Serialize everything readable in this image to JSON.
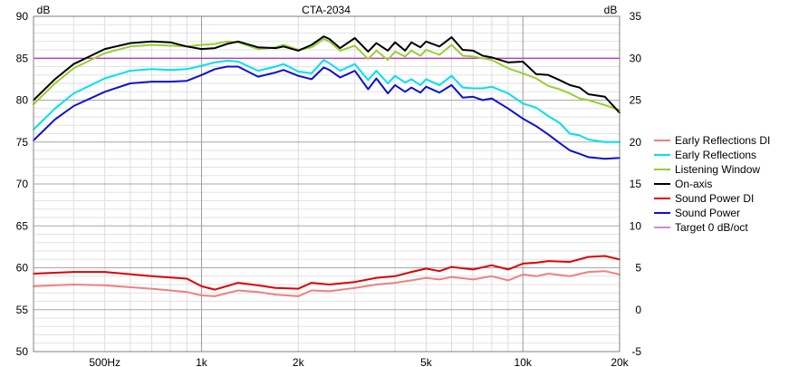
{
  "chart_data": {
    "type": "line",
    "title": "CTA-2034",
    "left_unit": "dB",
    "right_unit": "dB",
    "x_scale": "log",
    "xlim": [
      300,
      20000
    ],
    "ylim_left": [
      50,
      90
    ],
    "ylim_right": [
      -5,
      35
    ],
    "grid": true,
    "legend_position": "right",
    "x_ticks": [
      {
        "value": 500,
        "label": "500Hz"
      },
      {
        "value": 1000,
        "label": "1k"
      },
      {
        "value": 2000,
        "label": "2k"
      },
      {
        "value": 5000,
        "label": "5k"
      },
      {
        "value": 10000,
        "label": "10k"
      },
      {
        "value": 20000,
        "label": "20k"
      }
    ],
    "y_ticks_left": [
      {
        "value": 90,
        "label": "90"
      },
      {
        "value": 85,
        "label": "85"
      },
      {
        "value": 80,
        "label": "80"
      },
      {
        "value": 75,
        "label": "75"
      },
      {
        "value": 70,
        "label": "70"
      },
      {
        "value": 65,
        "label": "65"
      },
      {
        "value": 60,
        "label": "60"
      },
      {
        "value": 55,
        "label": "55"
      },
      {
        "value": 50,
        "label": "50"
      }
    ],
    "y_ticks_right": [
      {
        "value": 35,
        "label": "35"
      },
      {
        "value": 30,
        "label": "30"
      },
      {
        "value": 25,
        "label": "25"
      },
      {
        "value": 20,
        "label": "20"
      },
      {
        "value": 15,
        "label": "15"
      },
      {
        "value": 10,
        "label": "10"
      },
      {
        "value": 5,
        "label": "5"
      },
      {
        "value": 0,
        "label": "0"
      },
      {
        "value": -5,
        "label": "-5"
      }
    ],
    "series": [
      {
        "name": "Early Reflections DI",
        "color": "#f08080",
        "axis": "right",
        "points": [
          [
            300,
            2.8
          ],
          [
            400,
            3.0
          ],
          [
            500,
            2.9
          ],
          [
            700,
            2.5
          ],
          [
            900,
            2.1
          ],
          [
            1000,
            1.7
          ],
          [
            1100,
            1.6
          ],
          [
            1300,
            2.3
          ],
          [
            1500,
            2.1
          ],
          [
            1700,
            1.8
          ],
          [
            2000,
            1.6
          ],
          [
            2200,
            2.3
          ],
          [
            2500,
            2.2
          ],
          [
            3000,
            2.6
          ],
          [
            3500,
            3.0
          ],
          [
            4000,
            3.2
          ],
          [
            4500,
            3.5
          ],
          [
            5000,
            3.8
          ],
          [
            5500,
            3.6
          ],
          [
            6000,
            3.9
          ],
          [
            7000,
            3.6
          ],
          [
            8000,
            4.0
          ],
          [
            9000,
            3.5
          ],
          [
            10000,
            4.2
          ],
          [
            11000,
            4.0
          ],
          [
            12000,
            4.3
          ],
          [
            14000,
            4.0
          ],
          [
            16000,
            4.5
          ],
          [
            18000,
            4.6
          ],
          [
            20000,
            4.2
          ]
        ]
      },
      {
        "name": "Early Reflections",
        "color": "#00e0f0",
        "axis": "left",
        "points": [
          [
            300,
            76.5
          ],
          [
            350,
            79.0
          ],
          [
            400,
            80.8
          ],
          [
            500,
            82.6
          ],
          [
            600,
            83.5
          ],
          [
            700,
            83.7
          ],
          [
            800,
            83.6
          ],
          [
            900,
            83.7
          ],
          [
            1000,
            84.1
          ],
          [
            1100,
            84.5
          ],
          [
            1200,
            84.7
          ],
          [
            1300,
            84.6
          ],
          [
            1500,
            83.5
          ],
          [
            1700,
            84.0
          ],
          [
            1800,
            84.3
          ],
          [
            2000,
            83.4
          ],
          [
            2200,
            83.2
          ],
          [
            2400,
            84.8
          ],
          [
            2500,
            84.4
          ],
          [
            2700,
            83.5
          ],
          [
            3000,
            84.3
          ],
          [
            3300,
            82.4
          ],
          [
            3500,
            83.5
          ],
          [
            3800,
            82.0
          ],
          [
            4000,
            82.9
          ],
          [
            4300,
            82.1
          ],
          [
            4500,
            82.5
          ],
          [
            4800,
            81.8
          ],
          [
            5000,
            82.5
          ],
          [
            5500,
            81.8
          ],
          [
            6000,
            82.9
          ],
          [
            6500,
            81.5
          ],
          [
            7000,
            81.4
          ],
          [
            7500,
            81.4
          ],
          [
            8000,
            81.6
          ],
          [
            9000,
            80.8
          ],
          [
            10000,
            79.6
          ],
          [
            11000,
            79.1
          ],
          [
            12000,
            78.1
          ],
          [
            13000,
            77.3
          ],
          [
            14000,
            76.0
          ],
          [
            15000,
            75.8
          ],
          [
            16000,
            75.3
          ],
          [
            18000,
            75.0
          ],
          [
            20000,
            75.0
          ]
        ]
      },
      {
        "name": "Listening Window",
        "color": "#9acd32",
        "axis": "left",
        "points": [
          [
            300,
            79.5
          ],
          [
            350,
            82.0
          ],
          [
            400,
            83.8
          ],
          [
            500,
            85.6
          ],
          [
            600,
            86.4
          ],
          [
            700,
            86.6
          ],
          [
            800,
            86.5
          ],
          [
            900,
            86.4
          ],
          [
            1000,
            86.6
          ],
          [
            1100,
            86.7
          ],
          [
            1200,
            87.0
          ],
          [
            1300,
            86.9
          ],
          [
            1500,
            86.1
          ],
          [
            1700,
            86.3
          ],
          [
            1800,
            86.6
          ],
          [
            2000,
            86.0
          ],
          [
            2200,
            86.3
          ],
          [
            2400,
            87.3
          ],
          [
            2500,
            87.0
          ],
          [
            2700,
            85.9
          ],
          [
            3000,
            86.5
          ],
          [
            3300,
            84.9
          ],
          [
            3500,
            85.9
          ],
          [
            3800,
            84.8
          ],
          [
            4000,
            85.8
          ],
          [
            4300,
            85.2
          ],
          [
            4500,
            85.9
          ],
          [
            4800,
            85.3
          ],
          [
            5000,
            86.0
          ],
          [
            5500,
            85.4
          ],
          [
            6000,
            86.6
          ],
          [
            6500,
            85.3
          ],
          [
            7000,
            85.2
          ],
          [
            7500,
            85.0
          ],
          [
            8000,
            84.8
          ],
          [
            9000,
            83.8
          ],
          [
            10000,
            83.2
          ],
          [
            11000,
            82.6
          ],
          [
            12000,
            81.7
          ],
          [
            13000,
            81.3
          ],
          [
            14000,
            80.8
          ],
          [
            15000,
            80.2
          ],
          [
            16000,
            80.0
          ],
          [
            18000,
            79.4
          ],
          [
            20000,
            78.8
          ]
        ]
      },
      {
        "name": "On-axis",
        "color": "#000000",
        "axis": "left",
        "points": [
          [
            300,
            80.0
          ],
          [
            350,
            82.5
          ],
          [
            400,
            84.3
          ],
          [
            500,
            86.1
          ],
          [
            600,
            86.8
          ],
          [
            700,
            87.0
          ],
          [
            800,
            86.9
          ],
          [
            900,
            86.4
          ],
          [
            1000,
            86.1
          ],
          [
            1100,
            86.2
          ],
          [
            1200,
            86.7
          ],
          [
            1300,
            87.0
          ],
          [
            1500,
            86.3
          ],
          [
            1700,
            86.2
          ],
          [
            1800,
            86.4
          ],
          [
            2000,
            85.9
          ],
          [
            2200,
            86.6
          ],
          [
            2400,
            87.6
          ],
          [
            2500,
            87.3
          ],
          [
            2700,
            86.2
          ],
          [
            3000,
            87.4
          ],
          [
            3300,
            85.8
          ],
          [
            3500,
            86.8
          ],
          [
            3800,
            85.9
          ],
          [
            4000,
            86.9
          ],
          [
            4300,
            85.9
          ],
          [
            4500,
            86.9
          ],
          [
            4800,
            86.3
          ],
          [
            5000,
            87.0
          ],
          [
            5500,
            86.4
          ],
          [
            6000,
            87.5
          ],
          [
            6500,
            86.0
          ],
          [
            7000,
            85.9
          ],
          [
            7500,
            85.3
          ],
          [
            8000,
            85.1
          ],
          [
            9000,
            84.5
          ],
          [
            10000,
            84.6
          ],
          [
            11000,
            83.1
          ],
          [
            12000,
            83.0
          ],
          [
            13000,
            82.4
          ],
          [
            14000,
            81.8
          ],
          [
            15000,
            81.5
          ],
          [
            16000,
            80.7
          ],
          [
            18000,
            80.4
          ],
          [
            20000,
            78.5
          ]
        ]
      },
      {
        "name": "Sound Power DI",
        "color": "#e00000",
        "axis": "right",
        "points": [
          [
            300,
            4.3
          ],
          [
            400,
            4.5
          ],
          [
            500,
            4.5
          ],
          [
            700,
            4.0
          ],
          [
            900,
            3.7
          ],
          [
            1000,
            2.8
          ],
          [
            1100,
            2.4
          ],
          [
            1300,
            3.2
          ],
          [
            1500,
            2.9
          ],
          [
            1700,
            2.6
          ],
          [
            2000,
            2.5
          ],
          [
            2200,
            3.2
          ],
          [
            2500,
            3.0
          ],
          [
            3000,
            3.3
          ],
          [
            3500,
            3.8
          ],
          [
            4000,
            4.0
          ],
          [
            4500,
            4.5
          ],
          [
            5000,
            4.9
          ],
          [
            5500,
            4.6
          ],
          [
            6000,
            5.1
          ],
          [
            7000,
            4.8
          ],
          [
            8000,
            5.3
          ],
          [
            9000,
            4.8
          ],
          [
            10000,
            5.5
          ],
          [
            11000,
            5.6
          ],
          [
            12000,
            5.8
          ],
          [
            14000,
            5.7
          ],
          [
            16000,
            6.3
          ],
          [
            18000,
            6.4
          ],
          [
            20000,
            6.0
          ]
        ]
      },
      {
        "name": "Sound Power",
        "color": "#1010d0",
        "axis": "left",
        "points": [
          [
            300,
            75.2
          ],
          [
            350,
            77.7
          ],
          [
            400,
            79.3
          ],
          [
            500,
            81.0
          ],
          [
            600,
            82.0
          ],
          [
            700,
            82.2
          ],
          [
            800,
            82.2
          ],
          [
            900,
            82.3
          ],
          [
            1000,
            83.0
          ],
          [
            1100,
            83.7
          ],
          [
            1200,
            84.0
          ],
          [
            1300,
            84.0
          ],
          [
            1500,
            82.8
          ],
          [
            1700,
            83.3
          ],
          [
            1800,
            83.6
          ],
          [
            2000,
            82.9
          ],
          [
            2200,
            82.5
          ],
          [
            2400,
            83.9
          ],
          [
            2500,
            83.6
          ],
          [
            2700,
            82.7
          ],
          [
            3000,
            83.5
          ],
          [
            3300,
            81.3
          ],
          [
            3500,
            82.6
          ],
          [
            3800,
            80.8
          ],
          [
            4000,
            81.8
          ],
          [
            4300,
            81.0
          ],
          [
            4500,
            81.5
          ],
          [
            4800,
            80.9
          ],
          [
            5000,
            81.6
          ],
          [
            5500,
            80.9
          ],
          [
            6000,
            81.8
          ],
          [
            6500,
            80.3
          ],
          [
            7000,
            80.4
          ],
          [
            7500,
            80.0
          ],
          [
            8000,
            80.2
          ],
          [
            9000,
            79.0
          ],
          [
            10000,
            77.8
          ],
          [
            11000,
            76.9
          ],
          [
            12000,
            75.9
          ],
          [
            13000,
            74.9
          ],
          [
            14000,
            74.0
          ],
          [
            15000,
            73.6
          ],
          [
            16000,
            73.2
          ],
          [
            18000,
            73.0
          ],
          [
            20000,
            73.1
          ]
        ]
      },
      {
        "name": "Target 0 dB/oct",
        "color": "#c000c0",
        "axis": "left",
        "points": [
          [
            300,
            85
          ],
          [
            20000,
            85
          ]
        ]
      }
    ]
  }
}
